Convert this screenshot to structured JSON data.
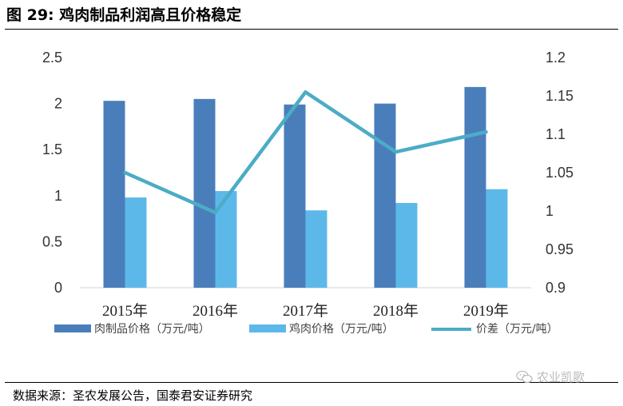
{
  "header": {
    "title": "图 29:  鸡肉制品利润高且价格稳定"
  },
  "footer": {
    "source": "数据来源：圣农发展公告，国泰君安证券研究"
  },
  "watermark": {
    "text": "农业凯歌",
    "icon": "wechat-icon"
  },
  "colors": {
    "meat_products": "#4a7ebb",
    "chicken": "#5db8ea",
    "spread": "#4bacc6"
  },
  "chart_data": {
    "type": "bar",
    "categories": [
      "2015年",
      "2016年",
      "2017年",
      "2018年",
      "2019年"
    ],
    "series": [
      {
        "name": "肉制品价格（万元/吨）",
        "type": "bar",
        "axis": "left",
        "values": [
          2.03,
          2.05,
          1.99,
          2.0,
          2.18
        ]
      },
      {
        "name": "鸡肉价格（万元/吨）",
        "type": "bar",
        "axis": "left",
        "values": [
          0.98,
          1.05,
          0.84,
          0.92,
          1.07
        ]
      },
      {
        "name": "价差（万元/吨）",
        "type": "line",
        "axis": "right",
        "values": [
          1.05,
          0.998,
          1.155,
          1.077,
          1.103
        ]
      }
    ],
    "ylim": [
      0,
      2.5
    ],
    "yticks": [
      "0",
      "0.5",
      "1",
      "1.5",
      "2",
      "2.5"
    ],
    "y2lim": [
      0.9,
      1.2
    ],
    "y2ticks": [
      "0.9",
      "0.95",
      "1",
      "1.05",
      "1.1",
      "1.15",
      "1.2"
    ],
    "legend_position": "bottom",
    "grid": false
  }
}
